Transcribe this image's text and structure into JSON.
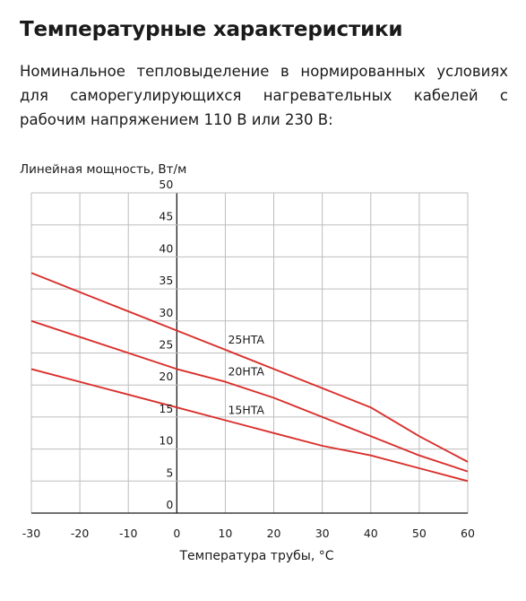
{
  "header": {
    "title": "Температурные характеристики",
    "description": "Номинальное тепловыделение в нормированных условиях для саморегулирующихся нагревательных кабелей с рабочим напряжением 110 В или 230 В:"
  },
  "chart_data": {
    "type": "line",
    "ylabel": "Линейная мощность, Вт/м",
    "xlabel": "Температура трубы, °C",
    "xlim": [
      -30,
      60
    ],
    "ylim": [
      0,
      50
    ],
    "x_ticks": [
      "-30",
      "-20",
      "-10",
      "0",
      "10",
      "20",
      "30",
      "40",
      "50",
      "60"
    ],
    "y_ticks": [
      "0",
      "5",
      "10",
      "15",
      "20",
      "25",
      "30",
      "35",
      "40",
      "45",
      "50"
    ],
    "grid": true,
    "line_color": "#d9302c",
    "series": [
      {
        "name": "25HTA",
        "x": [
          -30,
          0,
          10,
          20,
          30,
          40,
          50,
          60
        ],
        "y": [
          37.5,
          28.5,
          25.5,
          22.5,
          19.5,
          16.5,
          12.0,
          8.0
        ]
      },
      {
        "name": "20HTA",
        "x": [
          -30,
          0,
          10,
          20,
          30,
          40,
          50,
          60
        ],
        "y": [
          30.0,
          22.5,
          20.5,
          18.0,
          15.0,
          12.0,
          9.0,
          6.5
        ]
      },
      {
        "name": "15HTA",
        "x": [
          -30,
          0,
          10,
          20,
          30,
          40,
          50,
          60
        ],
        "y": [
          22.5,
          16.5,
          14.5,
          12.5,
          10.5,
          9.0,
          7.0,
          5.0
        ]
      }
    ]
  }
}
